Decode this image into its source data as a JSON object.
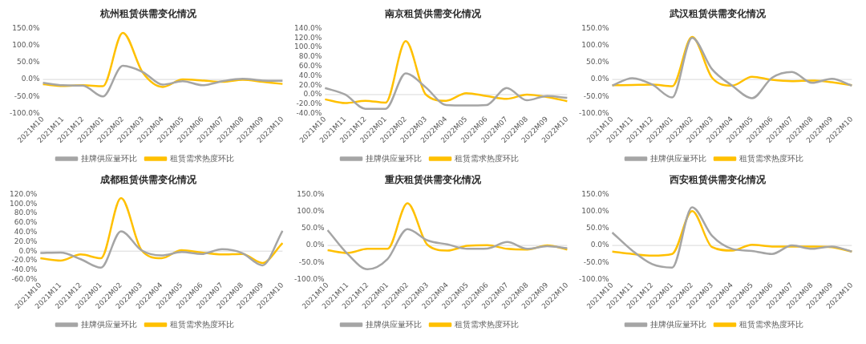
{
  "chart_data": [
    {
      "type": "line",
      "title": "杭州租赁供需变化情况",
      "ref_lines": [
        {
          "axis": "y",
          "value": 0,
          "color": "#d9d9d9"
        }
      ],
      "categories": [
        "2021M10",
        "2021M11",
        "2021M12",
        "2022M01",
        "2022M02",
        "2022M03",
        "2022M04",
        "2022M05",
        "2022M06",
        "2022M07",
        "2022M08",
        "2022M09",
        "2022M10"
      ],
      "ylim": [
        -100,
        150
      ],
      "yticks": [
        {
          "value": -100,
          "label": "-100.0%"
        },
        {
          "value": -50,
          "label": "-50.0%"
        },
        {
          "value": 0,
          "label": "0.0%"
        },
        {
          "value": 50,
          "label": "50.0%"
        },
        {
          "value": 100,
          "label": "100.0%"
        },
        {
          "value": 150,
          "label": "150.0%"
        }
      ],
      "grid": false,
      "legend": "bottom",
      "marker": "none",
      "series": [
        {
          "name": "挂牌供应量环比",
          "color": "#a5a5a5",
          "values": [
            -10,
            -17,
            -18,
            -50,
            40,
            22,
            -15,
            -5,
            -17,
            -5,
            2,
            -3,
            -4
          ]
        },
        {
          "name": "租赁需求热度环比",
          "color": "#ffc000",
          "values": [
            -14,
            -19,
            -17,
            -20,
            137,
            20,
            -22,
            0,
            -3,
            -7,
            -1,
            -7,
            -13
          ]
        }
      ]
    },
    {
      "type": "line",
      "title": "南京租赁供需变化情况",
      "ref_lines": [
        {
          "axis": "y",
          "value": 0,
          "color": "#d9d9d9"
        }
      ],
      "categories": [
        "2021M10",
        "2021M11",
        "2021M12",
        "2022M01",
        "2022M02",
        "2022M03",
        "2022M04",
        "2022M05",
        "2022M06",
        "2022M07",
        "2022M08",
        "2022M09",
        "2022M10"
      ],
      "ylim": [
        -40,
        140
      ],
      "yticks": [
        {
          "value": -40,
          "label": "-40.0%"
        },
        {
          "value": -20,
          "label": "-20.0%"
        },
        {
          "value": 0,
          "label": "0.0%"
        },
        {
          "value": 20,
          "label": "20.0%"
        },
        {
          "value": 40,
          "label": "40.0%"
        },
        {
          "value": 60,
          "label": "60.0%"
        },
        {
          "value": 80,
          "label": "80.0%"
        },
        {
          "value": 100,
          "label": "100.0%"
        },
        {
          "value": 120,
          "label": "120.0%"
        },
        {
          "value": 140,
          "label": "140.0%"
        }
      ],
      "grid": false,
      "legend": "bottom",
      "marker": "none",
      "series": [
        {
          "name": "挂牌供应量环比",
          "color": "#a5a5a5",
          "values": [
            14,
            0,
            -30,
            -30,
            45,
            15,
            -22,
            -23,
            -22,
            14,
            -12,
            -3,
            -7
          ]
        },
        {
          "name": "租赁需求热度环比",
          "color": "#ffc000",
          "values": [
            -10,
            -18,
            -13,
            -17,
            113,
            0,
            -13,
            3,
            -3,
            -9,
            0,
            -5,
            -14
          ]
        }
      ]
    },
    {
      "type": "line",
      "title": "武汉租赁供需变化情况",
      "ref_lines": [
        {
          "axis": "y",
          "value": 0,
          "color": "#d9d9d9"
        }
      ],
      "categories": [
        "2021M10",
        "2021M11",
        "2021M12",
        "2022M01",
        "2022M02",
        "2022M03",
        "2022M04",
        "2022M05",
        "2022M06",
        "2022M07",
        "2022M08",
        "2022M09",
        "2022M10"
      ],
      "ylim": [
        -100,
        150
      ],
      "yticks": [
        {
          "value": -100,
          "label": "-100.0%"
        },
        {
          "value": -50,
          "label": "-50.0%"
        },
        {
          "value": 0,
          "label": "0.0%"
        },
        {
          "value": 50,
          "label": "50.0%"
        },
        {
          "value": 100,
          "label": "100.0%"
        },
        {
          "value": 150,
          "label": "150.0%"
        }
      ],
      "grid": false,
      "legend": "bottom",
      "marker": "none",
      "series": [
        {
          "name": "挂牌供应量环比",
          "color": "#a5a5a5",
          "values": [
            -18,
            4,
            -15,
            -53,
            122,
            30,
            -18,
            -55,
            5,
            22,
            -10,
            2,
            -18
          ]
        },
        {
          "name": "租赁需求热度环比",
          "color": "#ffc000",
          "values": [
            -17,
            -16,
            -15,
            -20,
            125,
            5,
            -18,
            8,
            -1,
            -5,
            -3,
            -8,
            -17
          ]
        }
      ]
    },
    {
      "type": "line",
      "title": "成都租赁供需变化情况",
      "ref_lines": [
        {
          "axis": "y",
          "value": 0,
          "color": "#d9d9d9"
        }
      ],
      "categories": [
        "2021M10",
        "2021M11",
        "2021M12",
        "2022M01",
        "2022M02",
        "2022M03",
        "2022M04",
        "2022M05",
        "2022M06",
        "2022M07",
        "2022M08",
        "2022M09",
        "2022M10"
      ],
      "ylim": [
        -60,
        120
      ],
      "yticks": [
        {
          "value": -60,
          "label": "-60.0%"
        },
        {
          "value": -40,
          "label": "-40.0%"
        },
        {
          "value": -20,
          "label": "-20.0%"
        },
        {
          "value": 0,
          "label": "0.0%"
        },
        {
          "value": 20,
          "label": "20.0%"
        },
        {
          "value": 40,
          "label": "40.0%"
        },
        {
          "value": 60,
          "label": "60.0%"
        },
        {
          "value": 80,
          "label": "80.0%"
        },
        {
          "value": 100,
          "label": "100.0%"
        },
        {
          "value": 120,
          "label": "120.0%"
        }
      ],
      "grid": false,
      "legend": "bottom",
      "marker": "none",
      "series": [
        {
          "name": "挂牌供应量环比",
          "color": "#a5a5a5",
          "values": [
            -4,
            -3,
            -17,
            -35,
            42,
            2,
            -9,
            -2,
            -6,
            4,
            -4,
            -30,
            43
          ]
        },
        {
          "name": "租赁需求热度环比",
          "color": "#ffc000",
          "values": [
            -15,
            -20,
            -7,
            -15,
            112,
            3,
            -15,
            2,
            -3,
            -7,
            -6,
            -25,
            17
          ]
        }
      ]
    },
    {
      "type": "line",
      "title": "重庆租赁供需变化情况",
      "ref_lines": [
        {
          "axis": "y",
          "value": 0,
          "color": "#d9d9d9"
        }
      ],
      "categories": [
        "2021M10",
        "2021M11",
        "2021M12",
        "2022M01",
        "2022M02",
        "2022M03",
        "2022M04",
        "2022M05",
        "2022M06",
        "2022M07",
        "2022M08",
        "2022M09",
        "2022M10"
      ],
      "ylim": [
        -100,
        150
      ],
      "yticks": [
        {
          "value": -100,
          "label": "-100.0%"
        },
        {
          "value": -50,
          "label": "-50.0%"
        },
        {
          "value": 0,
          "label": "0.0%"
        },
        {
          "value": 50,
          "label": "50.0%"
        },
        {
          "value": 100,
          "label": "100.0%"
        },
        {
          "value": 150,
          "label": "150.0%"
        }
      ],
      "grid": false,
      "legend": "bottom",
      "marker": "none",
      "series": [
        {
          "name": "挂牌供应量环比",
          "color": "#a5a5a5",
          "values": [
            45,
            -25,
            -70,
            -40,
            48,
            15,
            3,
            -10,
            -9,
            10,
            -10,
            -2,
            -8
          ]
        },
        {
          "name": "租赁需求热度环比",
          "color": "#ffc000",
          "values": [
            -14,
            -22,
            -10,
            -10,
            124,
            2,
            -15,
            -1,
            1,
            -10,
            -12,
            0,
            -12
          ]
        }
      ]
    },
    {
      "type": "line",
      "title": "西安租赁供需变化情况",
      "ref_lines": [
        {
          "axis": "y",
          "value": 0,
          "color": "#d9d9d9"
        }
      ],
      "categories": [
        "2021M10",
        "2021M11",
        "2021M12",
        "2022M01",
        "2022M02",
        "2022M03",
        "2022M04",
        "2022M05",
        "2022M06",
        "2022M07",
        "2022M08",
        "2022M09",
        "2022M10"
      ],
      "ylim": [
        -100,
        150
      ],
      "yticks": [
        {
          "value": -100,
          "label": "-100.0%"
        },
        {
          "value": -50,
          "label": "-50.0%"
        },
        {
          "value": 0,
          "label": "0.0%"
        },
        {
          "value": 50,
          "label": "50.0%"
        },
        {
          "value": 100,
          "label": "100.0%"
        },
        {
          "value": 150,
          "label": "150.0%"
        }
      ],
      "grid": false,
      "legend": "bottom",
      "marker": "none",
      "series": [
        {
          "name": "挂牌供应量环比",
          "color": "#a5a5a5",
          "values": [
            38,
            -15,
            -55,
            -65,
            112,
            28,
            -10,
            -16,
            -25,
            0,
            -10,
            -3,
            -18
          ]
        },
        {
          "name": "租赁需求热度环比",
          "color": "#ffc000",
          "values": [
            -18,
            -25,
            -30,
            -25,
            101,
            -5,
            -15,
            2,
            -3,
            -3,
            -3,
            -5,
            -18
          ]
        }
      ]
    }
  ]
}
